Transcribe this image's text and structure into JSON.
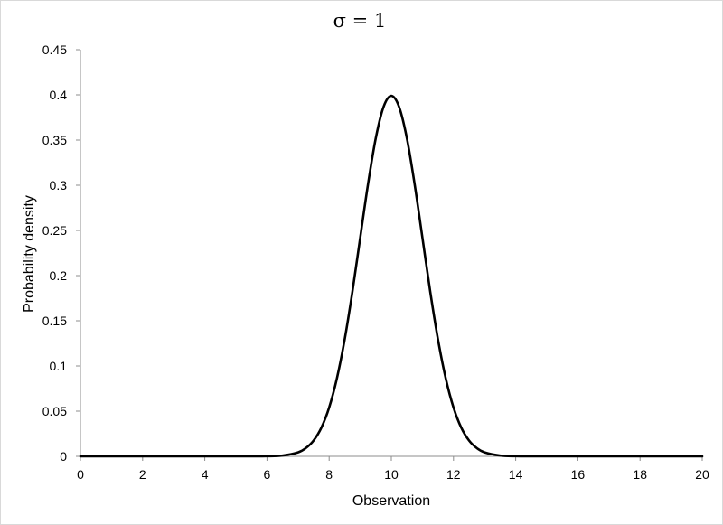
{
  "chart_data": {
    "type": "line",
    "title": "σ = 1",
    "xlabel": "Observation",
    "ylabel": "Probability density",
    "xlim": [
      0,
      20
    ],
    "ylim": [
      0,
      0.45
    ],
    "x_ticks": [
      0,
      2,
      4,
      6,
      8,
      10,
      12,
      14,
      16,
      18,
      20
    ],
    "y_ticks": [
      0,
      0.05,
      0.1,
      0.15,
      0.2,
      0.25,
      0.3,
      0.35,
      0.4,
      0.45
    ],
    "x_tick_labels": [
      "0",
      "2",
      "4",
      "6",
      "8",
      "10",
      "12",
      "14",
      "16",
      "18",
      "20"
    ],
    "y_tick_labels": [
      "0",
      "0.05",
      "0.1",
      "0.15",
      "0.2",
      "0.25",
      "0.3",
      "0.35",
      "0.4",
      "0.45"
    ],
    "grid": false,
    "series": [
      {
        "color": "#000000",
        "x": [
          0,
          1,
          2,
          3,
          4,
          5,
          5.5,
          6,
          6.5,
          7,
          7.25,
          7.5,
          7.75,
          8,
          8.25,
          8.5,
          8.75,
          9,
          9.25,
          9.5,
          9.75,
          10,
          10.25,
          10.5,
          10.75,
          11,
          11.25,
          11.5,
          11.75,
          12,
          12.25,
          12.5,
          12.75,
          13,
          13.5,
          14,
          14.5,
          15,
          16,
          17,
          18,
          19,
          20
        ],
        "y": [
          0,
          0,
          0,
          0,
          0,
          1.5e-06,
          1.6e-05,
          0.00013,
          0.00087,
          0.0044,
          0.0091,
          0.0175,
          0.0317,
          0.054,
          0.0863,
          0.1295,
          0.1826,
          0.242,
          0.3011,
          0.3521,
          0.3867,
          0.3989,
          0.3867,
          0.3521,
          0.3011,
          0.242,
          0.1826,
          0.1295,
          0.0863,
          0.054,
          0.0317,
          0.0175,
          0.0091,
          0.0044,
          0.00087,
          0.00013,
          1.6e-05,
          1.5e-06,
          0,
          0,
          0,
          0,
          0
        ]
      }
    ]
  }
}
